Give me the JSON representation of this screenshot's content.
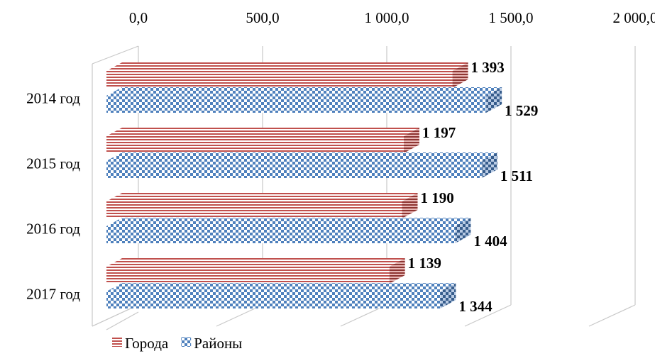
{
  "chart_data": {
    "type": "bar",
    "orientation": "horizontal",
    "style": "3d",
    "categories": [
      "2014 год",
      "2015 год",
      "2016 год",
      "2017 год"
    ],
    "series": [
      {
        "name": "Города",
        "values": [
          1393,
          1197,
          1190,
          1139
        ],
        "labels": [
          "1 393",
          "1 197",
          "1 190",
          "1 139"
        ],
        "color": "#c0504d",
        "pattern": "horizontal-lines"
      },
      {
        "name": "Районы",
        "values": [
          1529,
          1511,
          1404,
          1344
        ],
        "labels": [
          "1 529",
          "1 511",
          "1 404",
          "1 344"
        ],
        "color": "#4f81bd",
        "pattern": "checkerboard"
      }
    ],
    "xlim": [
      0,
      2000
    ],
    "x_ticks": [
      0,
      500,
      1000,
      1500,
      2000
    ],
    "x_tick_labels": [
      "0,0",
      "500,0",
      "1 000,0",
      "1 500,0",
      "2 000,0"
    ],
    "x_axis_position": "top",
    "grid": true,
    "legend": "bottom-left"
  }
}
